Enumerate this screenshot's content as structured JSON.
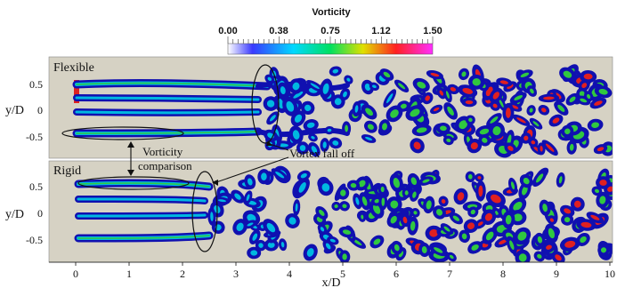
{
  "colorbar": {
    "title": "Vorticity",
    "ticks": [
      "0.00",
      "0.38",
      "0.75",
      "1.12",
      "1.50"
    ],
    "stops": [
      "#ffffff",
      "#2020ff",
      "#00d8ff",
      "#00e060",
      "#e0e000",
      "#ff2020",
      "#ff30ff"
    ]
  },
  "panels": {
    "top_label": "Flexible",
    "bottom_label": "Rigid"
  },
  "axes": {
    "ylabel": "y/D",
    "xlabel": "x/D",
    "top_yticks": [
      "0.5",
      "0",
      "-0.5"
    ],
    "bottom_yticks": [
      "0.5",
      "0",
      "-0.5"
    ],
    "xticks": [
      "0",
      "1",
      "2",
      "3",
      "4",
      "5",
      "6",
      "7",
      "8",
      "9",
      "10"
    ]
  },
  "annotations": {
    "vorticity_line1": "Vorticity",
    "vorticity_line2": "comparison",
    "vortex_falloff": "Vortex fall off"
  },
  "colors": {
    "background": "#d6d2c4",
    "low": "#1010b0",
    "mid": "#00b8e0",
    "high": "#30c840",
    "peak": "#e02020"
  }
}
